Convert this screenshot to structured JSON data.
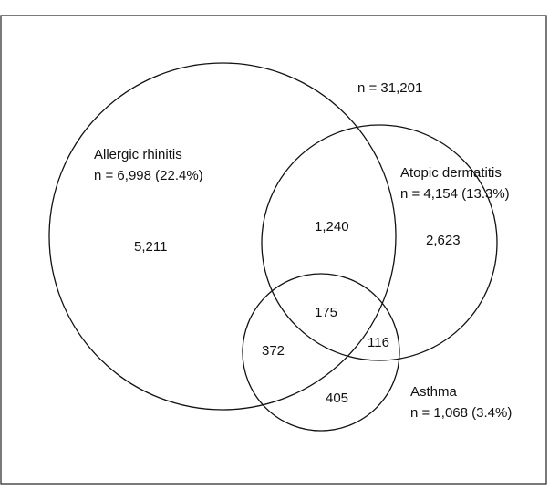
{
  "diagram": {
    "type": "venn",
    "total_label": "n = 31,201",
    "sets": [
      {
        "id": "allergic_rhinitis",
        "label": "Allergic rhinitis",
        "count_label": "n = 6,998 (22.4%)"
      },
      {
        "id": "atopic_dermatitis",
        "label": "Atopic dermatitis",
        "count_label": "n = 4,154 (13.3%)"
      },
      {
        "id": "asthma",
        "label": "Asthma",
        "count_label": "n = 1,068 (3.4%)"
      }
    ],
    "regions": {
      "rhinitis_only": "5,211",
      "dermatitis_only": "2,623",
      "rhinitis_dermatitis": "1,240",
      "all_three": "175",
      "rhinitis_asthma": "372",
      "dermatitis_asthma": "116",
      "asthma_only": "405"
    }
  }
}
